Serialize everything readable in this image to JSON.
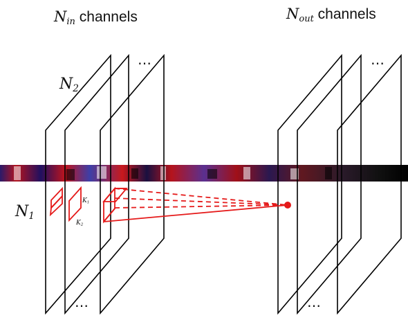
{
  "labels": {
    "in_channels": {
      "symbol": "N",
      "sub": "in",
      "word": "channels"
    },
    "out_channels": {
      "symbol": "N",
      "sub": "out",
      "word": "channels"
    },
    "n2": {
      "symbol": "N",
      "sub": "2"
    },
    "n1": {
      "symbol": "N",
      "sub": "1"
    },
    "k1": {
      "symbol": "K",
      "sub": "1"
    },
    "k2": {
      "symbol": "K",
      "sub": "2"
    },
    "ellipsis": "…"
  },
  "colors": {
    "frame": "#000000",
    "kernel": "#e51a1a",
    "strip_red": "#c0141c",
    "strip_blue": "#3d3fa8"
  }
}
